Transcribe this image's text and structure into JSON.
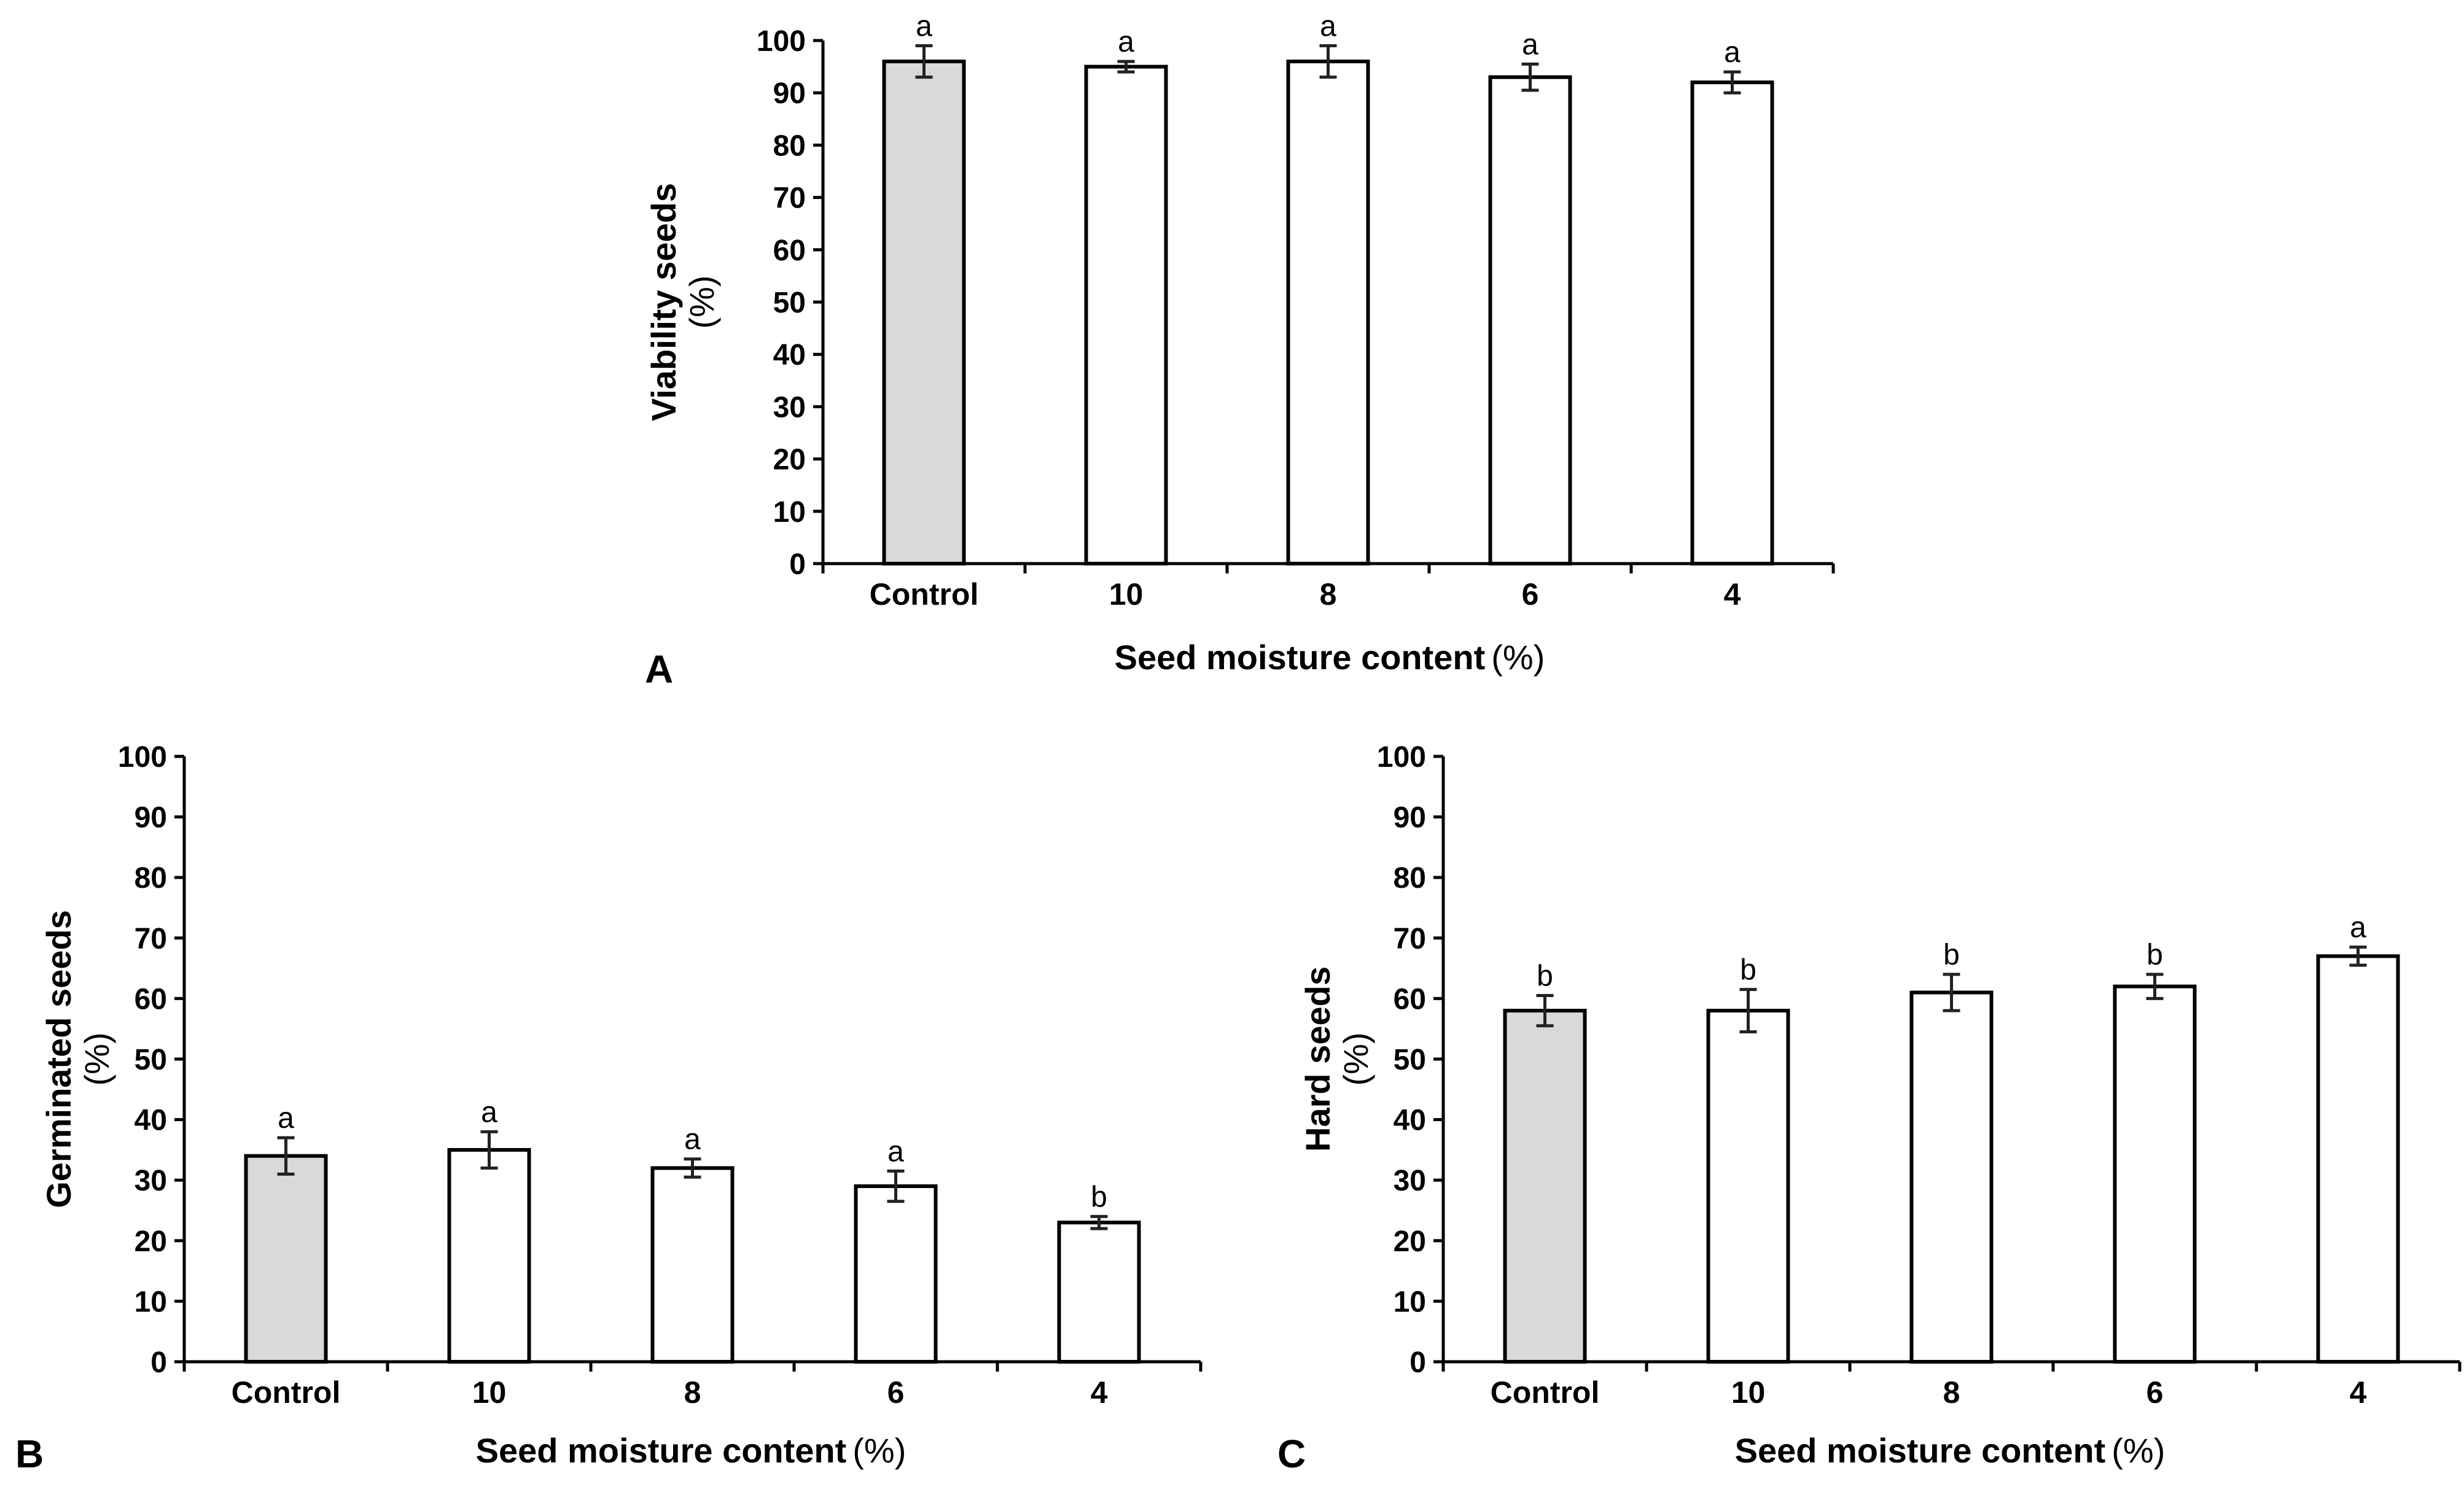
{
  "colors": {
    "control_fill": "#d9d9d9",
    "bar_fill": "#ffffff",
    "stroke": "#000000"
  },
  "chart_data": [
    {
      "type": "bar",
      "panel_label": "A",
      "categories": [
        "Control",
        "10",
        "8",
        "6",
        "4"
      ],
      "values": [
        96,
        95,
        96,
        93,
        92
      ],
      "errors": [
        3,
        1,
        3,
        2.5,
        2
      ],
      "significance": [
        "a",
        "a",
        "a",
        "a",
        "a"
      ],
      "ylabel": "Viability  seeds",
      "ylabel_unit": "(%)",
      "xlabel": "Seed moisture content",
      "xlabel_unit": "(%)",
      "ylim": [
        0,
        100
      ],
      "yticks": [
        0,
        10,
        20,
        30,
        40,
        50,
        60,
        70,
        80,
        90,
        100
      ]
    },
    {
      "type": "bar",
      "panel_label": "B",
      "categories": [
        "Control",
        "10",
        "8",
        "6",
        "4"
      ],
      "values": [
        34,
        35,
        32,
        29,
        23
      ],
      "errors": [
        3,
        3,
        1.5,
        2.5,
        1
      ],
      "significance": [
        "a",
        "a",
        "a",
        "a",
        "b"
      ],
      "ylabel": "Germinated seeds",
      "ylabel_unit": "(%)",
      "xlabel": "Seed moisture content",
      "xlabel_unit": "(%)",
      "ylim": [
        0,
        100
      ],
      "yticks": [
        0,
        10,
        20,
        30,
        40,
        50,
        60,
        70,
        80,
        90,
        100
      ]
    },
    {
      "type": "bar",
      "panel_label": "C",
      "categories": [
        "Control",
        "10",
        "8",
        "6",
        "4"
      ],
      "values": [
        58,
        58,
        61,
        62,
        67
      ],
      "errors": [
        2.5,
        3.5,
        3,
        2,
        1.5
      ],
      "significance": [
        "b",
        "b",
        "b",
        "b",
        "a"
      ],
      "ylabel": "Hard seeds",
      "ylabel_unit": "(%)",
      "xlabel": "Seed moisture content",
      "xlabel_unit": "(%)",
      "ylim": [
        0,
        100
      ],
      "yticks": [
        0,
        10,
        20,
        30,
        40,
        50,
        60,
        70,
        80,
        90,
        100
      ]
    }
  ]
}
